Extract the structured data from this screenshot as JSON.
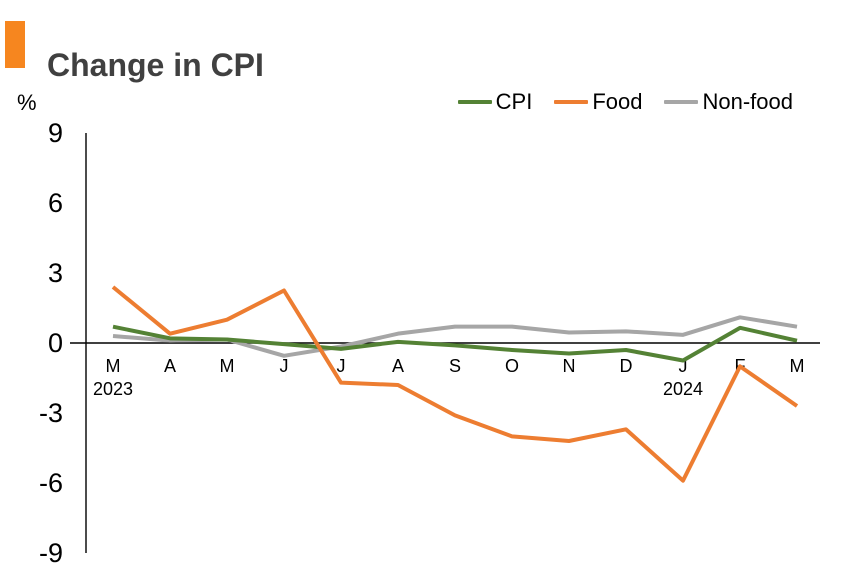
{
  "header": {
    "title": "Change in CPI",
    "accent_color": "#F6861F",
    "title_color": "#404040"
  },
  "chart_data": {
    "type": "line",
    "title": "Change in CPI",
    "unit_label": "%",
    "categories": [
      "M",
      "A",
      "M",
      "J",
      "J",
      "A",
      "S",
      "O",
      "N",
      "D",
      "J",
      "F",
      "M"
    ],
    "year_labels": [
      {
        "index": 0,
        "label": "2023"
      },
      {
        "index": 10,
        "label": "2024"
      }
    ],
    "y_ticks": [
      9,
      6,
      3,
      0,
      -3,
      -6,
      -9
    ],
    "ylim": [
      -9,
      9
    ],
    "grid": false,
    "legend_position": "top-right",
    "axis_color": "#000000",
    "series": [
      {
        "name": "CPI",
        "color": "#548235",
        "values": [
          0.7,
          0.2,
          0.15,
          -0.05,
          -0.25,
          0.05,
          -0.1,
          -0.3,
          -0.45,
          -0.3,
          -0.75,
          0.65,
          0.1
        ]
      },
      {
        "name": "Food",
        "color": "#ED7D31",
        "values": [
          2.4,
          0.4,
          1.0,
          2.25,
          -1.7,
          -1.8,
          -3.1,
          -4.0,
          -4.2,
          -3.7,
          -5.9,
          -1.0,
          -2.7
        ]
      },
      {
        "name": "Non-food",
        "color": "#A6A6A6",
        "values": [
          0.3,
          0.1,
          0.15,
          -0.55,
          -0.15,
          0.4,
          0.7,
          0.7,
          0.45,
          0.5,
          0.35,
          1.1,
          0.7
        ]
      }
    ]
  }
}
